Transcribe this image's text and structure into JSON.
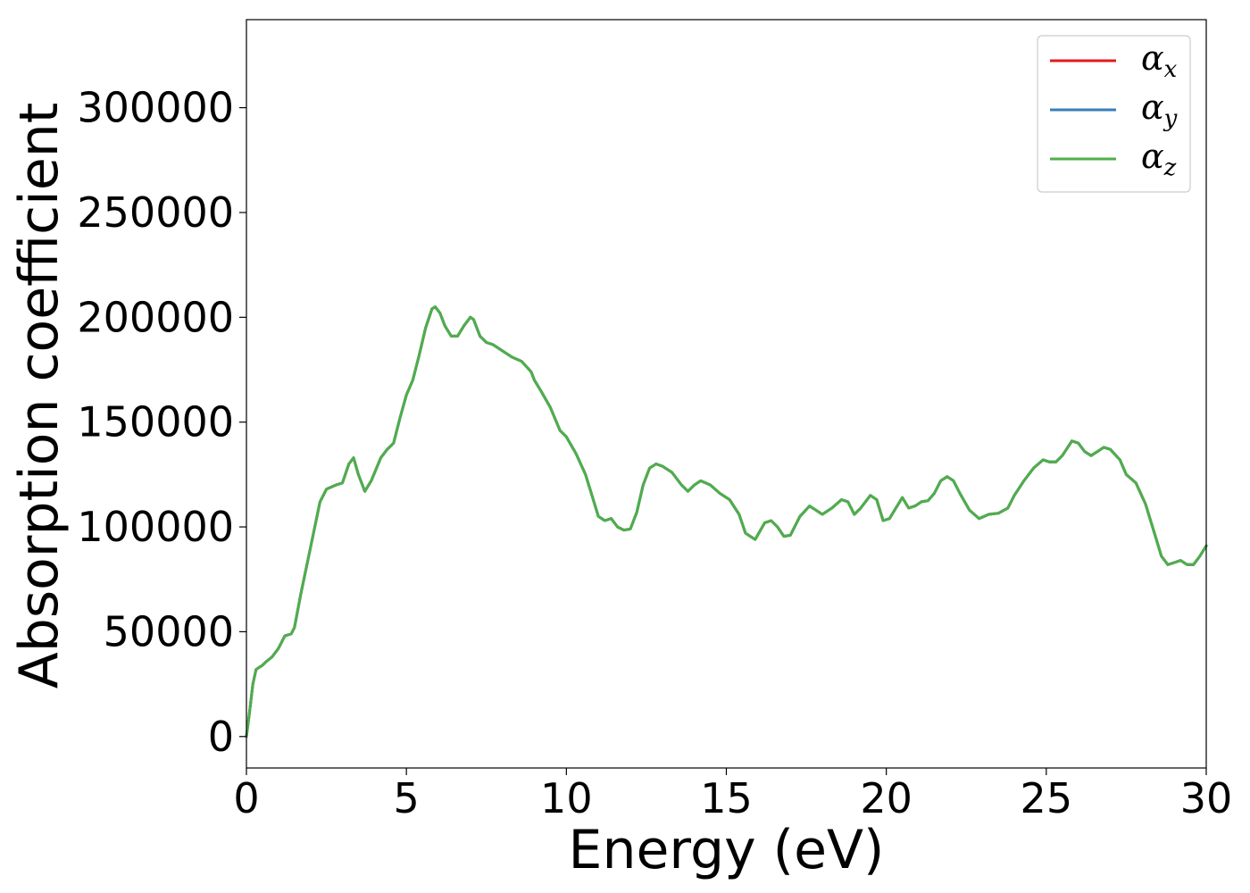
{
  "chart_data": {
    "type": "line",
    "title": "",
    "xlabel": "Energy (eV)",
    "ylabel": "Absorption coefficient",
    "xlim": [
      0,
      30
    ],
    "ylim": [
      -15000,
      342000
    ],
    "xticks": [
      "0",
      "5",
      "10",
      "15",
      "20",
      "25",
      "30"
    ],
    "yticks": [
      "0",
      "50000",
      "100000",
      "150000",
      "200000",
      "250000",
      "300000"
    ],
    "grid": false,
    "legend_position": "top-right",
    "series": [
      {
        "name": "α",
        "sub": "x",
        "color": "#e41a1c"
      },
      {
        "name": "α",
        "sub": "y",
        "color": "#377eb8"
      },
      {
        "name": "α",
        "sub": "z",
        "color": "#4daf4a"
      }
    ],
    "x": [
      0,
      0.1,
      0.2,
      0.3,
      0.4,
      0.5,
      0.6,
      0.8,
      1.0,
      1.2,
      1.4,
      1.5,
      1.7,
      2.0,
      2.3,
      2.5,
      2.8,
      3.0,
      3.2,
      3.35,
      3.5,
      3.7,
      3.9,
      4.2,
      4.4,
      4.6,
      4.8,
      5.0,
      5.2,
      5.4,
      5.6,
      5.8,
      5.9,
      6.05,
      6.2,
      6.4,
      6.6,
      6.8,
      7.0,
      7.1,
      7.3,
      7.5,
      7.7,
      8.0,
      8.3,
      8.6,
      8.9,
      9.0,
      9.2,
      9.5,
      9.8,
      10.0,
      10.3,
      10.6,
      10.8,
      11.0,
      11.2,
      11.4,
      11.6,
      11.8,
      12.0,
      12.2,
      12.4,
      12.6,
      12.8,
      13.0,
      13.3,
      13.6,
      13.8,
      14.0,
      14.2,
      14.5,
      14.8,
      15.1,
      15.4,
      15.6,
      15.9,
      16.2,
      16.4,
      16.6,
      16.8,
      17.0,
      17.3,
      17.6,
      17.8,
      18.0,
      18.3,
      18.6,
      18.8,
      19.0,
      19.2,
      19.5,
      19.7,
      19.9,
      20.1,
      20.3,
      20.5,
      20.7,
      20.9,
      21.1,
      21.3,
      21.5,
      21.7,
      21.9,
      22.1,
      22.3,
      22.6,
      22.9,
      23.2,
      23.5,
      23.8,
      24.0,
      24.3,
      24.6,
      24.9,
      25.1,
      25.3,
      25.5,
      25.8,
      26.0,
      26.2,
      26.4,
      26.6,
      26.8,
      27.0,
      27.3,
      27.5,
      27.8,
      28.1,
      28.4,
      28.6,
      28.8,
      29.0,
      29.2,
      29.4,
      29.6,
      29.8,
      30.0
    ],
    "y": [
      0,
      12000,
      25000,
      32000,
      33000,
      34000,
      35500,
      38000,
      42000,
      48000,
      49000,
      52000,
      68000,
      90000,
      112000,
      118000,
      120000,
      121000,
      130000,
      133000,
      125000,
      117000,
      122000,
      133000,
      137000,
      140000,
      152000,
      163000,
      170000,
      182000,
      195000,
      204000,
      205000,
      202000,
      196000,
      191000,
      191000,
      196000,
      200000,
      199000,
      191000,
      188000,
      187000,
      184000,
      181000,
      179000,
      174000,
      170000,
      165000,
      157000,
      146000,
      143000,
      135000,
      125000,
      115000,
      105000,
      103000,
      104000,
      100000,
      98500,
      99000,
      107000,
      120000,
      128000,
      130000,
      129000,
      126000,
      120000,
      117000,
      120000,
      122000,
      120000,
      116000,
      113000,
      106000,
      97000,
      94000,
      102000,
      103000,
      100000,
      95500,
      96000,
      105000,
      110000,
      108000,
      106000,
      109000,
      113000,
      112000,
      106000,
      109000,
      115000,
      113000,
      103000,
      104000,
      109000,
      114000,
      109000,
      110000,
      112000,
      112500,
      116000,
      122000,
      124000,
      122000,
      116000,
      108000,
      104000,
      106000,
      106500,
      109000,
      115000,
      122000,
      128000,
      132000,
      131000,
      131000,
      134000,
      141000,
      140000,
      136000,
      134000,
      136000,
      138000,
      137000,
      132000,
      125000,
      121000,
      111000,
      96000,
      86000,
      82000,
      83000,
      84000,
      82000,
      82000,
      86000,
      91000
    ]
  }
}
